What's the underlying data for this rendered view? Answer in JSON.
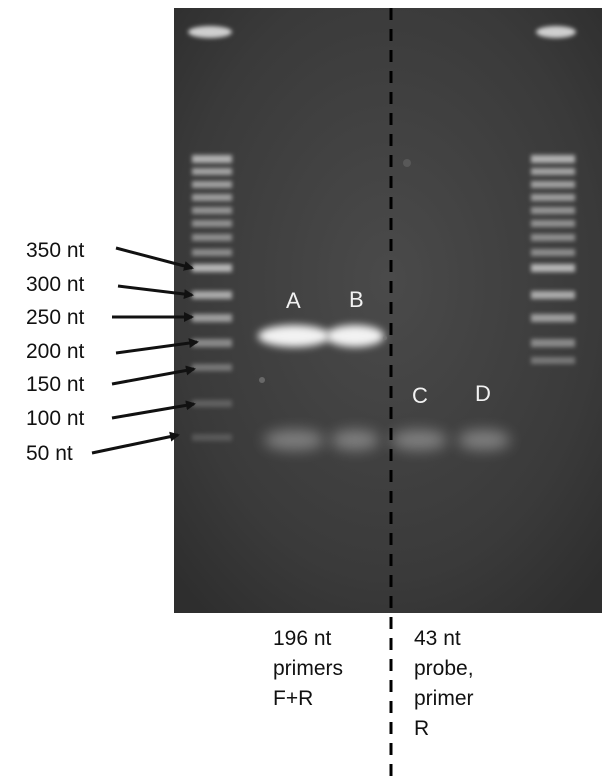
{
  "ladder_labels": [
    "350 nt",
    "300 nt",
    "250 nt",
    "200 nt",
    "150 nt",
    "100 nt",
    "50 nt"
  ],
  "lane_labels": [
    "A",
    "B",
    "C",
    "D"
  ],
  "caption_left": {
    "line1": "196 nt",
    "line2": "primers",
    "line3": "F+R"
  },
  "caption_right": {
    "line1": "43 nt",
    "line2": "probe,",
    "line3": "primer",
    "line4": "R"
  },
  "colors": {
    "gel": "#3b3b3b",
    "band": "#e8e8e8",
    "text": "#111111",
    "lane_label": "#f2f2f2"
  }
}
